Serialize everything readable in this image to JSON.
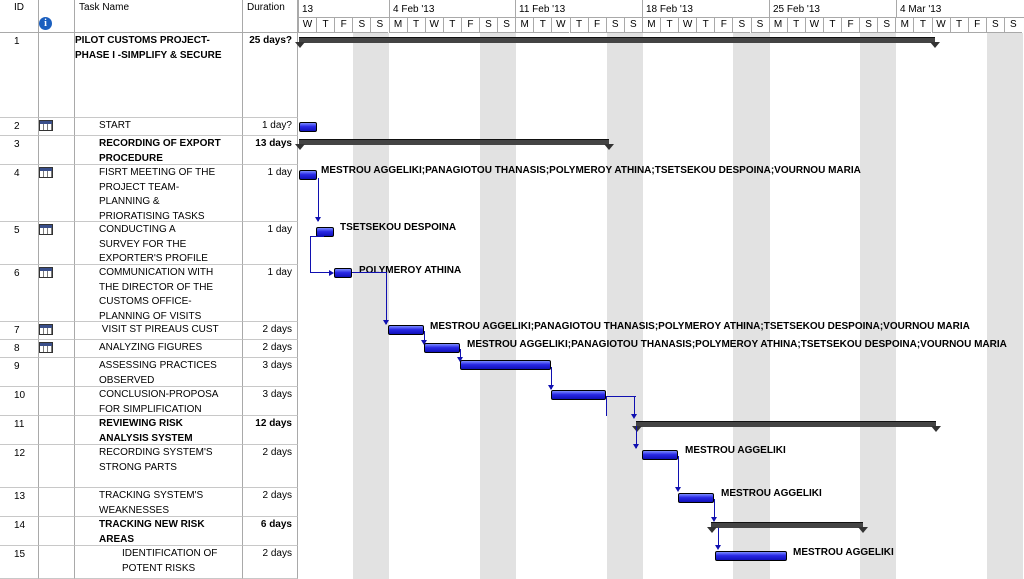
{
  "table": {
    "header": {
      "id": "ID",
      "name": "Task Name",
      "duration": "Duration"
    },
    "rows": [
      {
        "id": "1",
        "name": "PILOT CUSTOMS PROJECT-\nPHASE I -SIMPLIFY & SECURE",
        "duration": "25 days?",
        "bold": true,
        "indent": 0,
        "icon": false
      },
      {
        "id": "2",
        "name": "START",
        "duration": "1 day?",
        "bold": false,
        "indent": 1,
        "icon": true
      },
      {
        "id": "3",
        "name": "RECORDING OF EXPORT\nPROCEDURE",
        "duration": "13 days",
        "bold": true,
        "indent": 1,
        "icon": false
      },
      {
        "id": "4",
        "name": "FISRT MEETING OF THE\nPROJECT TEAM-\nPLANNING &\nPRIORATISING TASKS",
        "duration": "1 day",
        "bold": false,
        "indent": 2,
        "icon": true
      },
      {
        "id": "5",
        "name": "CONDUCTING A\nSURVEY FOR THE\nEXPORTER'S PROFILE",
        "duration": "1 day",
        "bold": false,
        "indent": 2,
        "icon": true
      },
      {
        "id": "6",
        "name": "COMMUNICATION WITH\nTHE DIRECTOR OF THE\nCUSTOMS OFFICE-\nPLANNING OF VISITS",
        "duration": "1 day",
        "bold": false,
        "indent": 2,
        "icon": true
      },
      {
        "id": "7",
        "name": " VISIT ST PIREAUS CUST",
        "duration": "2 days",
        "bold": false,
        "indent": 2,
        "icon": true
      },
      {
        "id": "8",
        "name": "ANALYZING FIGURES",
        "duration": "2 days",
        "bold": false,
        "indent": 2,
        "icon": true
      },
      {
        "id": "9",
        "name": "ASSESSING PRACTICES\nOBSERVED",
        "duration": "3 days",
        "bold": false,
        "indent": 2,
        "icon": false
      },
      {
        "id": "10",
        "name": "CONCLUSION-PROPOSA\nFOR SIMPLIFICATION",
        "duration": "3 days",
        "bold": false,
        "indent": 2,
        "icon": false
      },
      {
        "id": "11",
        "name": "REVIEWING RISK\nANALYSIS SYSTEM",
        "duration": "12 days",
        "bold": true,
        "indent": 1,
        "icon": false
      },
      {
        "id": "12",
        "name": "RECORDING SYSTEM'S\nSTRONG PARTS",
        "duration": "2 days",
        "bold": false,
        "indent": 2,
        "icon": false
      },
      {
        "id": "13",
        "name": "TRACKING SYSTEM'S\nWEAKNESSES",
        "duration": "2 days",
        "bold": false,
        "indent": 2,
        "icon": false
      },
      {
        "id": "14",
        "name": "TRACKING NEW RISK\nAREAS",
        "duration": "6 days",
        "bold": true,
        "indent": 2,
        "icon": false
      },
      {
        "id": "15",
        "name": "IDENTIFICATION OF\nPOTENT RISKS",
        "duration": "2 days",
        "bold": false,
        "indent": 3,
        "icon": false
      }
    ]
  },
  "timescale": {
    "weeks": [
      "13",
      "4 Feb '13",
      "11 Feb '13",
      "18 Feb '13",
      "25 Feb '13",
      "4 Mar '13"
    ],
    "days": [
      "W",
      "T",
      "F",
      "S",
      "S",
      "M",
      "T",
      "W",
      "T",
      "F",
      "S",
      "S",
      "M",
      "T",
      "W",
      "T",
      "F",
      "S",
      "S",
      "M",
      "T",
      "W",
      "T",
      "F",
      "S",
      "S",
      "M",
      "T",
      "W",
      "T",
      "F",
      "S",
      "S",
      "M",
      "T",
      "W",
      "T",
      "F",
      "S",
      "S"
    ]
  },
  "resources": {
    "r4": "MESTROU AGGELIKI;PANAGIOTOU THANASIS;POLYMEROY ATHINA;TSETSEKOU DESPOINA;VOURNOU MARIA",
    "r5": "TSETSEKOU DESPOINA",
    "r6": "POLYMEROY ATHINA",
    "r7": "MESTROU AGGELIKI;PANAGIOTOU THANASIS;POLYMEROY ATHINA;TSETSEKOU DESPOINA;VOURNOU MARIA",
    "r8": "MESTROU AGGELIKI;PANAGIOTOU THANASIS;POLYMEROY ATHINA;TSETSEKOU DESPOINA;VOURNOU MARIA",
    "r12": "MESTROU AGGELIKI",
    "r13": "MESTROU AGGELIKI",
    "r15": "MESTROU AGGELIKI"
  },
  "icons": {
    "calendar": "task-calendar-icon",
    "info": "info-icon"
  },
  "colors": {
    "bar": "#2828e6",
    "summary": "#444444",
    "weekend": "#e2e2e2",
    "link": "#1010b0"
  }
}
